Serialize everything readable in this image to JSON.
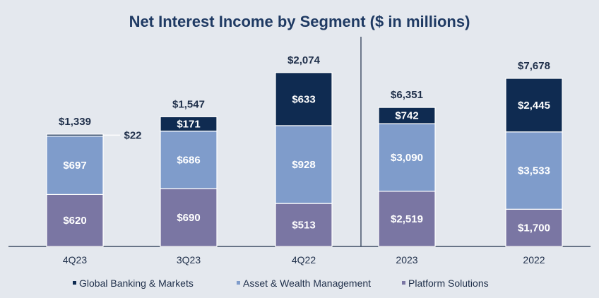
{
  "chart_data": {
    "type": "bar",
    "stacked": true,
    "title": "Net Interest Income by Segment ($ in millions)",
    "categories": [
      "4Q23",
      "3Q23",
      "4Q22",
      "2023",
      "2022"
    ],
    "series": [
      {
        "name": "Platform Solutions",
        "color": "#7a76a3",
        "values": [
          620,
          690,
          513,
          2519,
          1700
        ],
        "labels": [
          "$620",
          "$690",
          "$513",
          "$2,519",
          "$1,700"
        ]
      },
      {
        "name": "Asset & Wealth Management",
        "color": "#7f9ccb",
        "values": [
          697,
          686,
          928,
          3090,
          3533
        ],
        "labels": [
          "$697",
          "$686",
          "$928",
          "$3,090",
          "$3,533"
        ]
      },
      {
        "name": "Global Banking & Markets",
        "color": "#0f2b51",
        "values": [
          22,
          171,
          633,
          742,
          2445
        ],
        "labels": [
          "$22",
          "$171",
          "$633",
          "$742",
          "$2,445"
        ]
      }
    ],
    "totals": [
      1339,
      1547,
      2074,
      6351,
      7678
    ],
    "total_labels": [
      "$1,339",
      "$1,547",
      "$2,074",
      "$6,351",
      "$7,678"
    ],
    "legend_order": [
      "Global Banking & Markets",
      "Asset & Wealth Management",
      "Platform Solutions"
    ],
    "legend_position": "bottom",
    "grid": false,
    "groups": [
      {
        "categories": [
          "4Q23",
          "3Q23",
          "4Q22"
        ],
        "ylim": [
          0,
          2350
        ]
      },
      {
        "categories": [
          "2023",
          "2022"
        ],
        "ylim": [
          0,
          9000
        ]
      }
    ]
  }
}
